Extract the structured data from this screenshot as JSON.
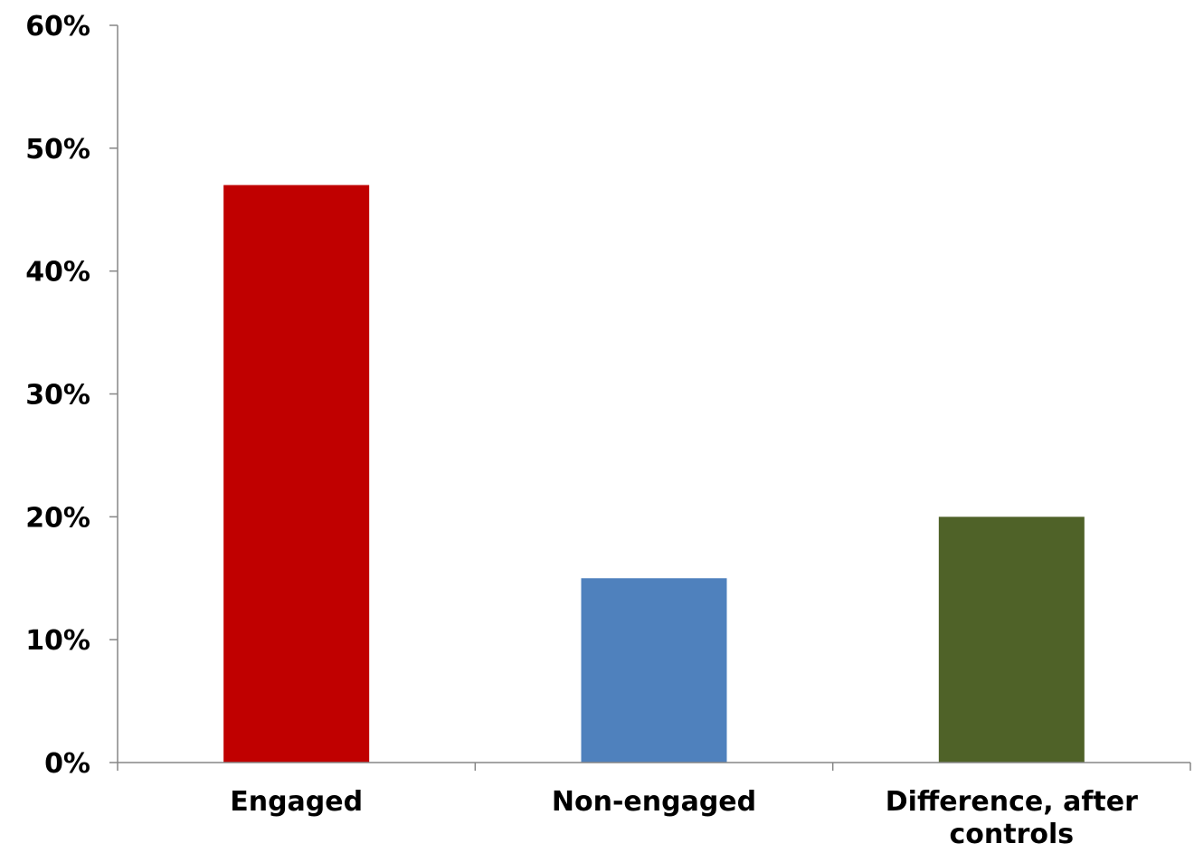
{
  "chart_data": {
    "type": "bar",
    "title": "",
    "xlabel": "",
    "ylabel": "",
    "categories": [
      "Engaged",
      "Non-engaged",
      "Difference, after controls"
    ],
    "category_lines": [
      [
        "Engaged"
      ],
      [
        "Non-engaged"
      ],
      [
        "Difference, after",
        "controls"
      ]
    ],
    "values": [
      0.47,
      0.15,
      0.2
    ],
    "colors": [
      "#C00000",
      "#4F81BD",
      "#4F6228"
    ],
    "ylim": [
      0,
      0.6
    ],
    "yticks": [
      0,
      0.1,
      0.2,
      0.3,
      0.4,
      0.5,
      0.6
    ],
    "ytick_labels": [
      "0%",
      "10%",
      "20%",
      "30%",
      "40%",
      "50%",
      "60%"
    ],
    "grid": false,
    "legend": "none",
    "axis_color": "#868686"
  }
}
